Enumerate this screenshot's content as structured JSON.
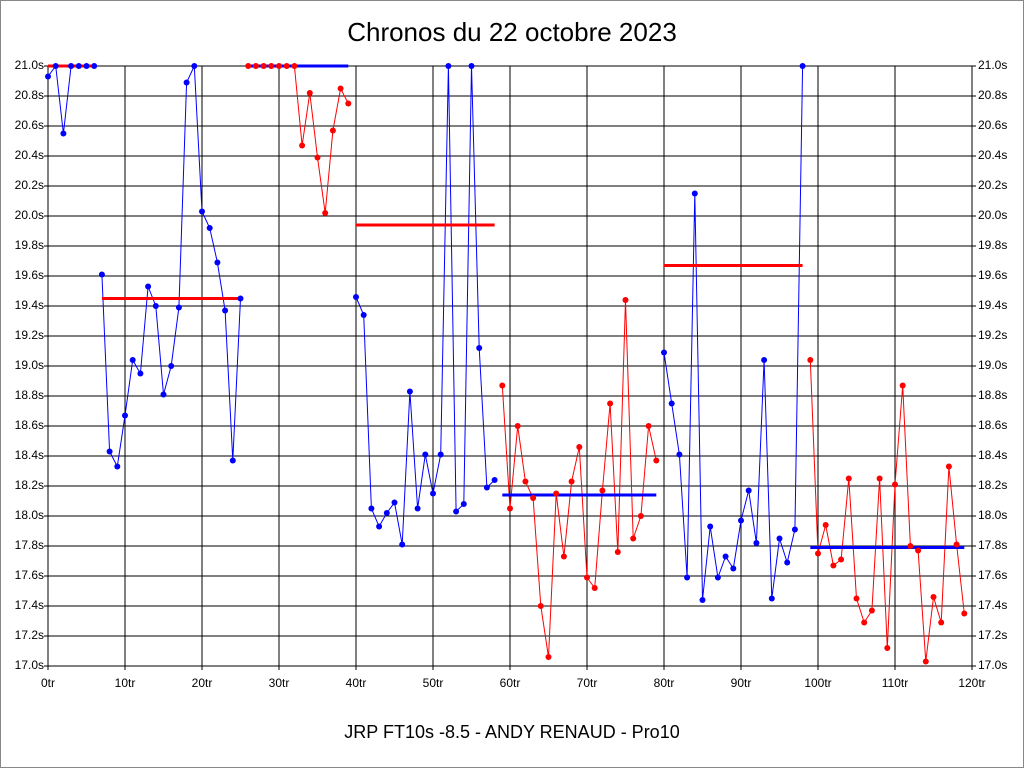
{
  "chart_data": {
    "type": "line",
    "title": "Chronos du 22 octobre 2023",
    "x_label": "JRP FT10s -8.5 - ANDY RENAUD - Pro10",
    "xlim": [
      0,
      120
    ],
    "xticks": [
      {
        "value": 0,
        "label": "0tr"
      },
      {
        "value": 10,
        "label": "10tr"
      },
      {
        "value": 20,
        "label": "20tr"
      },
      {
        "value": 30,
        "label": "30tr"
      },
      {
        "value": 40,
        "label": "40tr"
      },
      {
        "value": 50,
        "label": "50tr"
      },
      {
        "value": 60,
        "label": "60tr"
      },
      {
        "value": 70,
        "label": "70tr"
      },
      {
        "value": 80,
        "label": "80tr"
      },
      {
        "value": 90,
        "label": "90tr"
      },
      {
        "value": 100,
        "label": "100tr"
      },
      {
        "value": 110,
        "label": "110tr"
      },
      {
        "value": 120,
        "label": "120tr"
      }
    ],
    "ylim": [
      17.0,
      21.0
    ],
    "yticks": [
      {
        "value": 17.0,
        "label": "17.0s"
      },
      {
        "value": 17.2,
        "label": "17.2s"
      },
      {
        "value": 17.4,
        "label": "17.4s"
      },
      {
        "value": 17.6,
        "label": "17.6s"
      },
      {
        "value": 17.8,
        "label": "17.8s"
      },
      {
        "value": 18.0,
        "label": "18.0s"
      },
      {
        "value": 18.2,
        "label": "18.2s"
      },
      {
        "value": 18.4,
        "label": "18.4s"
      },
      {
        "value": 18.6,
        "label": "18.6s"
      },
      {
        "value": 18.8,
        "label": "18.8s"
      },
      {
        "value": 19.0,
        "label": "19.0s"
      },
      {
        "value": 19.2,
        "label": "19.2s"
      },
      {
        "value": 19.4,
        "label": "19.4s"
      },
      {
        "value": 19.6,
        "label": "19.6s"
      },
      {
        "value": 19.8,
        "label": "19.8s"
      },
      {
        "value": 20.0,
        "label": "20.0s"
      },
      {
        "value": 20.2,
        "label": "20.2s"
      },
      {
        "value": 20.4,
        "label": "20.4s"
      },
      {
        "value": 20.6,
        "label": "20.6s"
      },
      {
        "value": 20.8,
        "label": "20.8s"
      },
      {
        "value": 21.0,
        "label": "21.0s"
      }
    ],
    "grid": true,
    "series": [
      {
        "color": "#0000ff",
        "average_color": "#ff0000",
        "average": 21.0,
        "x": [
          0,
          1,
          2,
          3,
          4,
          5,
          6
        ],
        "values": [
          20.93,
          21.0,
          20.55,
          21.0,
          21.0,
          21.0,
          21.0
        ]
      },
      {
        "color": "#0000ff",
        "average_color": "#ff0000",
        "average": 19.45,
        "x": [
          7,
          8,
          9,
          10,
          11,
          12,
          13,
          14,
          15,
          16,
          17,
          18,
          19,
          20,
          21,
          22,
          23,
          24,
          25
        ],
        "values": [
          19.61,
          18.43,
          18.33,
          18.67,
          19.04,
          18.95,
          19.53,
          19.4,
          18.81,
          19.0,
          19.39,
          20.89,
          21.0,
          20.03,
          19.92,
          19.69,
          19.37,
          18.37,
          19.45
        ]
      },
      {
        "color": "#ff0000",
        "average_color": "#0000ff",
        "average": 21.0,
        "x": [
          26,
          27,
          28,
          29,
          30,
          31,
          32,
          33,
          34,
          35,
          36,
          37,
          38,
          39
        ],
        "values": [
          21.0,
          21.0,
          21.0,
          21.0,
          21.0,
          21.0,
          21.0,
          20.47,
          20.82,
          20.39,
          20.02,
          20.57,
          20.85,
          20.75
        ]
      },
      {
        "color": "#0000ff",
        "average_color": "#ff0000",
        "average": 19.94,
        "x": [
          40,
          41,
          42,
          43,
          44,
          45,
          46,
          47,
          48,
          49,
          50,
          51,
          52,
          53,
          54,
          55,
          56,
          57,
          58
        ],
        "values": [
          19.46,
          19.34,
          18.05,
          17.93,
          18.02,
          18.09,
          17.81,
          18.83,
          18.05,
          18.41,
          18.15,
          18.41,
          21.0,
          18.03,
          18.08,
          21.0,
          19.12,
          18.19,
          18.24
        ]
      },
      {
        "color": "#ff0000",
        "average_color": "#0000ff",
        "average": 18.14,
        "x": [
          59,
          60,
          61,
          62,
          63,
          64,
          65,
          66,
          67,
          68,
          69,
          70,
          71,
          72,
          73,
          74,
          75,
          76,
          77,
          78,
          79
        ],
        "values": [
          18.87,
          18.05,
          18.6,
          18.23,
          18.12,
          17.4,
          17.06,
          18.15,
          17.73,
          18.23,
          18.46,
          17.59,
          17.52,
          18.17,
          18.75,
          17.76,
          19.44,
          17.85,
          18.0,
          18.6,
          18.37
        ]
      },
      {
        "color": "#0000ff",
        "average_color": "#ff0000",
        "average": 19.67,
        "x": [
          80,
          81,
          82,
          83,
          84,
          85,
          86,
          87,
          88,
          89,
          90,
          91,
          92,
          93,
          94,
          95,
          96,
          97,
          98
        ],
        "values": [
          19.09,
          18.75,
          18.41,
          17.59,
          20.15,
          17.44,
          17.93,
          17.59,
          17.73,
          17.65,
          17.97,
          18.17,
          17.82,
          19.04,
          17.45,
          17.85,
          17.69,
          17.91,
          21.0
        ]
      },
      {
        "color": "#ff0000",
        "average_color": "#0000ff",
        "average": 17.79,
        "x": [
          99,
          100,
          101,
          102,
          103,
          104,
          105,
          106,
          107,
          108,
          109,
          110,
          111,
          112,
          113,
          114,
          115,
          116,
          117,
          118,
          119
        ],
        "values": [
          19.04,
          17.75,
          17.94,
          17.67,
          17.71,
          18.25,
          17.45,
          17.29,
          17.37,
          18.25,
          17.12,
          18.21,
          18.87,
          17.8,
          17.77,
          17.03,
          17.46,
          17.29,
          18.33,
          17.81,
          17.35
        ]
      }
    ]
  }
}
